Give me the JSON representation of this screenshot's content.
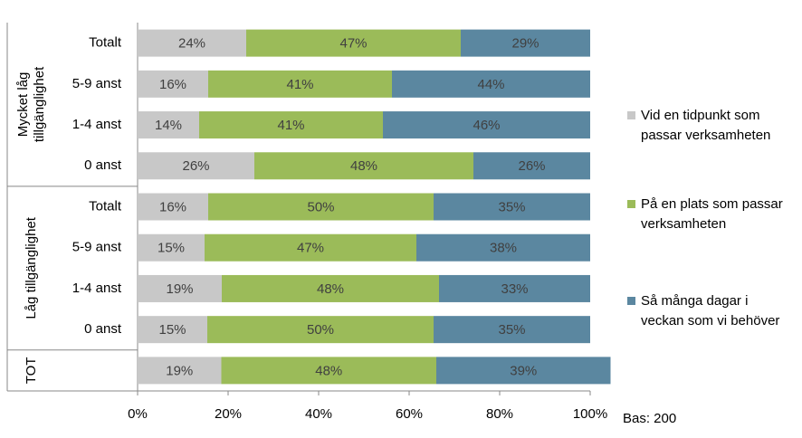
{
  "chart_data": {
    "type": "stacked-barh",
    "groups": [
      {
        "label": [
          "Mycket låg",
          "tillgänglighet"
        ],
        "categories": [
          "Totalt",
          "5-9 anst",
          "1-4 anst",
          "0 anst"
        ]
      },
      {
        "label": [
          "Låg tillgänglighet"
        ],
        "categories": [
          "Totalt",
          "5-9 anst",
          "1-4 anst",
          "0 anst"
        ]
      },
      {
        "label": [
          "TOT"
        ],
        "categories": [
          null
        ]
      }
    ],
    "series": [
      {
        "name": "Vid en tidpunkt som passar verksamheten",
        "color": "#c8c8c8",
        "values": [
          24.0,
          15.6,
          13.6,
          25.8,
          15.6,
          14.8,
          18.6,
          15.4,
          18.5
        ],
        "value_labels": [
          "24%",
          "16%",
          "14%",
          "26%",
          "16%",
          "15%",
          "19%",
          "15%",
          "19%"
        ]
      },
      {
        "name": "På en plats som passar verksamheten",
        "color": "#9bbb59",
        "values": [
          47.4,
          40.6,
          40.6,
          48.4,
          49.8,
          46.8,
          48.0,
          50.0,
          47.5
        ],
        "value_labels": [
          "47%",
          "41%",
          "41%",
          "48%",
          "50%",
          "47%",
          "48%",
          "50%",
          "48%"
        ]
      },
      {
        "name": "Så många dagar i veckan som vi behöver",
        "color": "#5b87a0",
        "values": [
          28.6,
          43.8,
          45.8,
          25.8,
          34.6,
          38.4,
          33.4,
          34.6,
          38.5
        ],
        "value_labels": [
          "29%",
          "44%",
          "46%",
          "26%",
          "35%",
          "38%",
          "33%",
          "35%",
          "39%"
        ]
      }
    ],
    "xlim": [
      0,
      100
    ],
    "xticks": [
      {
        "value": 0,
        "label": "0%"
      },
      {
        "value": 20,
        "label": "20%"
      },
      {
        "value": 40,
        "label": "40%"
      },
      {
        "value": 60,
        "label": "60%"
      },
      {
        "value": 80,
        "label": "80%"
      },
      {
        "value": 100,
        "label": "100%"
      }
    ],
    "note": "Bas: 200",
    "legend": "right"
  }
}
